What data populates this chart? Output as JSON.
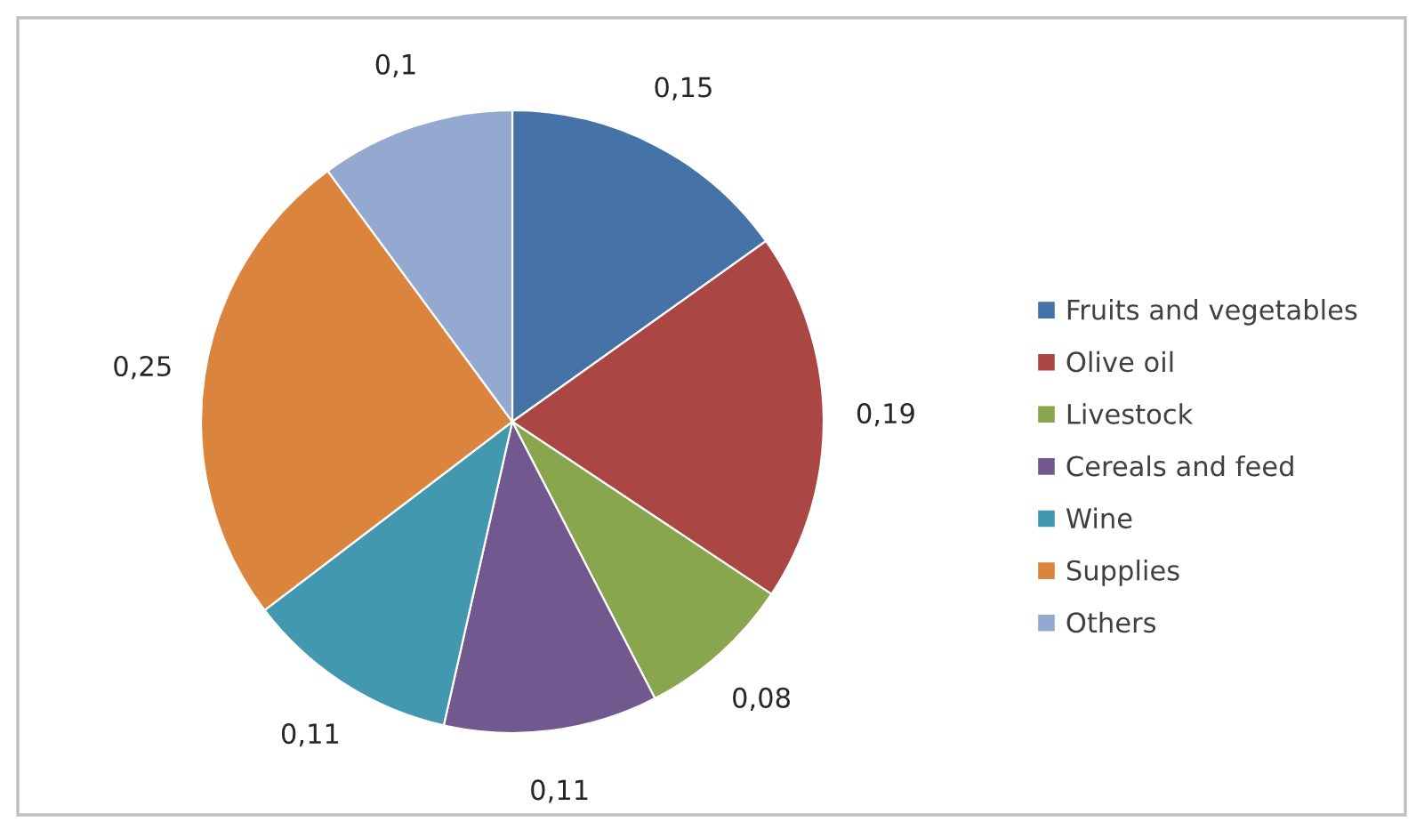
{
  "chart_data": {
    "type": "pie",
    "categories": [
      "Fruits and vegetables",
      "Olive oil",
      "Livestock",
      "Cereals and feed",
      "Wine",
      "Supplies",
      "Others"
    ],
    "values": [
      0.15,
      0.19,
      0.08,
      0.11,
      0.11,
      0.25,
      0.1
    ],
    "value_labels": [
      "0,15",
      "0,19",
      "0,08",
      "0,11",
      "0,11",
      "0,25",
      "0,1"
    ],
    "colors": [
      "#4572a7",
      "#aa4643",
      "#89a54e",
      "#71588f",
      "#4198af",
      "#db843d",
      "#93a9cf"
    ],
    "legend": "right"
  }
}
